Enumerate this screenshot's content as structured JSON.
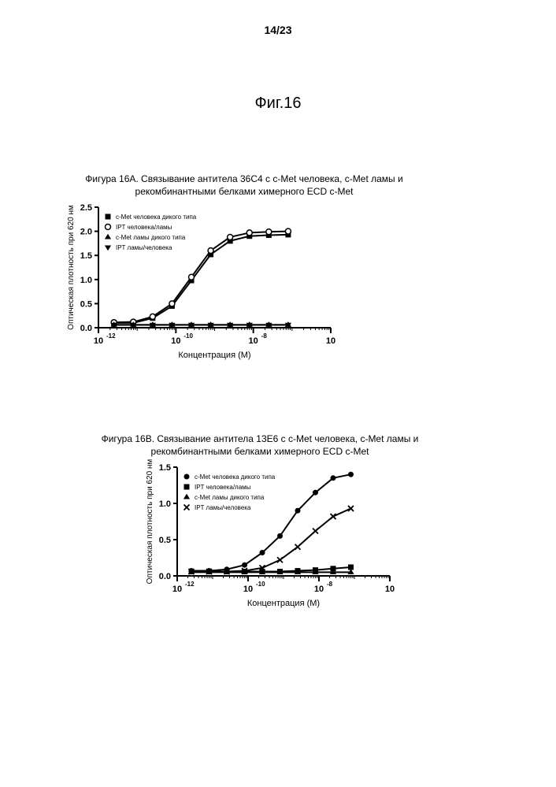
{
  "page_number": "14/23",
  "main_title": "Фиг.16",
  "panelA": {
    "title_line1": "Фигура 16A. Связывание антитела 36C4 с c-Met человека, c-Met ламы и",
    "title_line2": "рекомбинантными белками химерного ECD c-Met",
    "chart": {
      "type": "line-scatter-logx",
      "ylabel": "Оптическая плотность при 620 нм",
      "xlabel": "Концентрация (M)",
      "ylim": [
        0.0,
        2.5
      ],
      "ytick_step": 0.5,
      "yticks_labels": [
        "0.0",
        "0.5",
        "1.0",
        "1.5",
        "2.0",
        "2.5"
      ],
      "xlim_exp": [
        -12,
        -6
      ],
      "xtick_exp_step": 2,
      "xticks_labels": [
        "10",
        "10",
        "10",
        "10"
      ],
      "xticks_exponents": [
        "-12",
        "-10",
        "-8",
        "-6"
      ],
      "axis_color": "#000000",
      "line_width": 2,
      "series": [
        {
          "name": "c-Met человека дикого типа",
          "marker": "filled-square",
          "color": "#000000",
          "points": [
            {
              "x_exp": -11.6,
              "y": 0.1
            },
            {
              "x_exp": -11.1,
              "y": 0.1
            },
            {
              "x_exp": -10.6,
              "y": 0.2
            },
            {
              "x_exp": -10.1,
              "y": 0.45
            },
            {
              "x_exp": -9.6,
              "y": 0.98
            },
            {
              "x_exp": -9.1,
              "y": 1.52
            },
            {
              "x_exp": -8.6,
              "y": 1.8
            },
            {
              "x_exp": -8.1,
              "y": 1.9
            },
            {
              "x_exp": -7.6,
              "y": 1.92
            },
            {
              "x_exp": -7.1,
              "y": 1.93
            }
          ]
        },
        {
          "name": "IPT человека/ламы",
          "marker": "open-circle",
          "color": "#000000",
          "points": [
            {
              "x_exp": -11.6,
              "y": 0.11
            },
            {
              "x_exp": -11.1,
              "y": 0.12
            },
            {
              "x_exp": -10.6,
              "y": 0.23
            },
            {
              "x_exp": -10.1,
              "y": 0.5
            },
            {
              "x_exp": -9.6,
              "y": 1.05
            },
            {
              "x_exp": -9.1,
              "y": 1.6
            },
            {
              "x_exp": -8.6,
              "y": 1.88
            },
            {
              "x_exp": -8.1,
              "y": 1.97
            },
            {
              "x_exp": -7.6,
              "y": 1.99
            },
            {
              "x_exp": -7.1,
              "y": 2.0
            }
          ]
        },
        {
          "name": "c-Met ламы дикого типа",
          "marker": "filled-triangle-up",
          "color": "#000000",
          "points": [
            {
              "x_exp": -11.6,
              "y": 0.06
            },
            {
              "x_exp": -11.1,
              "y": 0.06
            },
            {
              "x_exp": -10.6,
              "y": 0.06
            },
            {
              "x_exp": -10.1,
              "y": 0.06
            },
            {
              "x_exp": -9.6,
              "y": 0.06
            },
            {
              "x_exp": -9.1,
              "y": 0.06
            },
            {
              "x_exp": -8.6,
              "y": 0.06
            },
            {
              "x_exp": -8.1,
              "y": 0.06
            },
            {
              "x_exp": -7.6,
              "y": 0.06
            },
            {
              "x_exp": -7.1,
              "y": 0.06
            }
          ]
        },
        {
          "name": "IPT ламы/человека",
          "marker": "filled-triangle-down",
          "color": "#000000",
          "points": [
            {
              "x_exp": -11.6,
              "y": 0.06
            },
            {
              "x_exp": -11.1,
              "y": 0.06
            },
            {
              "x_exp": -10.6,
              "y": 0.06
            },
            {
              "x_exp": -10.1,
              "y": 0.06
            },
            {
              "x_exp": -9.6,
              "y": 0.06
            },
            {
              "x_exp": -9.1,
              "y": 0.06
            },
            {
              "x_exp": -8.6,
              "y": 0.06
            },
            {
              "x_exp": -8.1,
              "y": 0.06
            },
            {
              "x_exp": -7.6,
              "y": 0.06
            },
            {
              "x_exp": -7.1,
              "y": 0.06
            }
          ]
        }
      ],
      "legend": {
        "position": "inside-top-left",
        "fontsize": 8,
        "items": [
          {
            "marker": "filled-square",
            "label": "c-Met человека дикого типа"
          },
          {
            "marker": "open-circle",
            "label": "IPT человека/ламы"
          },
          {
            "marker": "filled-triangle-up",
            "label": "c-Met ламы дикого типа"
          },
          {
            "marker": "filled-triangle-down",
            "label": "IPT ламы/человека"
          }
        ]
      }
    }
  },
  "panelB": {
    "title_line1": "Фигура 16B. Связывание антитела 13E6 с c-Met человека, c-Met ламы и",
    "title_line2": "рекомбинантными белками химерного ECD c-Met",
    "chart": {
      "type": "line-scatter-logx",
      "ylabel": "Оптическая плотность при 620 нм",
      "xlabel": "Концентрация (M)",
      "ylim": [
        0.0,
        1.5
      ],
      "ytick_step": 0.5,
      "yticks_labels": [
        "0.0",
        "0.5",
        "1.0",
        "1.5"
      ],
      "xlim_exp": [
        -12,
        -6
      ],
      "xtick_exp_step": 2,
      "xticks_labels": [
        "10",
        "10",
        "10",
        "10"
      ],
      "xticks_exponents": [
        "-12",
        "-10",
        "-8",
        "-6"
      ],
      "axis_color": "#000000",
      "line_width": 2,
      "series": [
        {
          "name": "c-Met человека дикого типа",
          "marker": "filled-circle",
          "color": "#000000",
          "points": [
            {
              "x_exp": -11.6,
              "y": 0.07
            },
            {
              "x_exp": -11.1,
              "y": 0.07
            },
            {
              "x_exp": -10.6,
              "y": 0.09
            },
            {
              "x_exp": -10.1,
              "y": 0.15
            },
            {
              "x_exp": -9.6,
              "y": 0.32
            },
            {
              "x_exp": -9.1,
              "y": 0.55
            },
            {
              "x_exp": -8.6,
              "y": 0.9
            },
            {
              "x_exp": -8.1,
              "y": 1.15
            },
            {
              "x_exp": -7.6,
              "y": 1.35
            },
            {
              "x_exp": -7.1,
              "y": 1.4
            }
          ]
        },
        {
          "name": "IPT человека/ламы",
          "marker": "filled-square",
          "color": "#000000",
          "points": [
            {
              "x_exp": -11.6,
              "y": 0.06
            },
            {
              "x_exp": -11.1,
              "y": 0.06
            },
            {
              "x_exp": -10.6,
              "y": 0.06
            },
            {
              "x_exp": -10.1,
              "y": 0.06
            },
            {
              "x_exp": -9.6,
              "y": 0.06
            },
            {
              "x_exp": -9.1,
              "y": 0.06
            },
            {
              "x_exp": -8.6,
              "y": 0.07
            },
            {
              "x_exp": -8.1,
              "y": 0.08
            },
            {
              "x_exp": -7.6,
              "y": 0.1
            },
            {
              "x_exp": -7.1,
              "y": 0.12
            }
          ]
        },
        {
          "name": "c-Met ламы дикого типа",
          "marker": "filled-triangle-up",
          "color": "#000000",
          "points": [
            {
              "x_exp": -11.6,
              "y": 0.05
            },
            {
              "x_exp": -11.1,
              "y": 0.05
            },
            {
              "x_exp": -10.6,
              "y": 0.05
            },
            {
              "x_exp": -10.1,
              "y": 0.05
            },
            {
              "x_exp": -9.6,
              "y": 0.05
            },
            {
              "x_exp": -9.1,
              "y": 0.05
            },
            {
              "x_exp": -8.6,
              "y": 0.05
            },
            {
              "x_exp": -8.1,
              "y": 0.05
            },
            {
              "x_exp": -7.6,
              "y": 0.05
            },
            {
              "x_exp": -7.1,
              "y": 0.05
            }
          ]
        },
        {
          "name": "IPT ламы/человека",
          "marker": "cross",
          "color": "#000000",
          "points": [
            {
              "x_exp": -11.6,
              "y": 0.06
            },
            {
              "x_exp": -11.1,
              "y": 0.06
            },
            {
              "x_exp": -10.6,
              "y": 0.06
            },
            {
              "x_exp": -10.1,
              "y": 0.07
            },
            {
              "x_exp": -9.6,
              "y": 0.11
            },
            {
              "x_exp": -9.1,
              "y": 0.22
            },
            {
              "x_exp": -8.6,
              "y": 0.4
            },
            {
              "x_exp": -8.1,
              "y": 0.62
            },
            {
              "x_exp": -7.6,
              "y": 0.82
            },
            {
              "x_exp": -7.1,
              "y": 0.93
            }
          ]
        }
      ],
      "legend": {
        "position": "inside-top-left",
        "fontsize": 8,
        "items": [
          {
            "marker": "filled-circle",
            "label": "c-Met человека дикого типа"
          },
          {
            "marker": "filled-square",
            "label": "IPT человека/ламы"
          },
          {
            "marker": "filled-triangle-up",
            "label": "c-Met ламы дикого типа"
          },
          {
            "marker": "cross",
            "label": "IPT ламы/человека"
          }
        ]
      }
    }
  }
}
